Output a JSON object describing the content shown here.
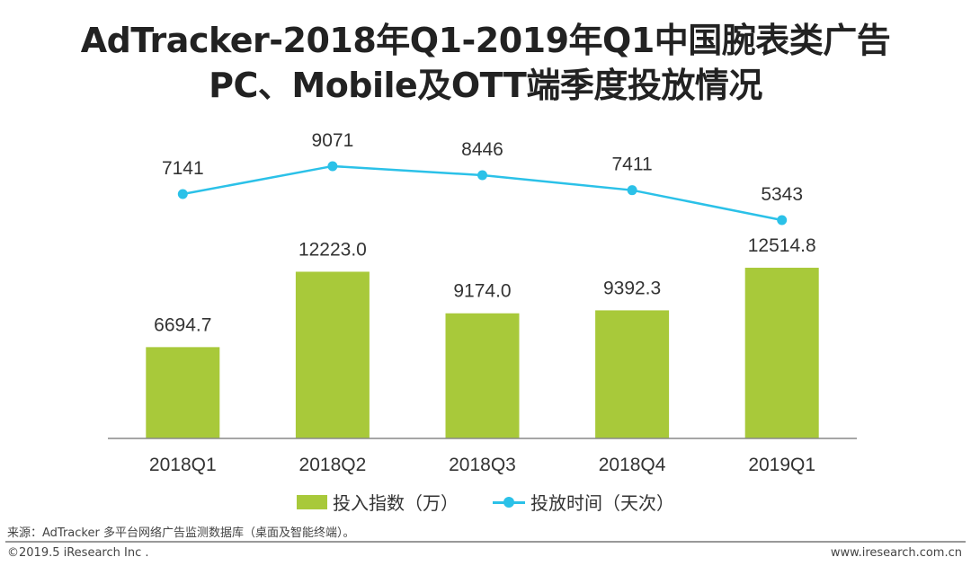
{
  "chart_data": {
    "type": "bar+line",
    "title": "AdTracker-2018年Q1-2019年Q1中国腕表类广告",
    "subtitle": "PC、Mobile及OTT端季度投放情况",
    "categories": [
      "2018Q1",
      "2018Q2",
      "2018Q3",
      "2018Q4",
      "2019Q1"
    ],
    "series": [
      {
        "name": "投入指数（万）",
        "type": "bar",
        "values": [
          6694.7,
          12223.0,
          9174.0,
          9392.3,
          12514.8
        ],
        "labels": [
          "6694.7",
          "12223.0",
          "9174.0",
          "9392.3",
          "12514.8"
        ],
        "color": "#a8c93a"
      },
      {
        "name": "投放时间（天次）",
        "type": "line",
        "values": [
          7141,
          9071,
          8446,
          7411,
          5343
        ],
        "labels": [
          "7141",
          "9071",
          "8446",
          "7411",
          "5343"
        ],
        "color": "#2bc1e8"
      }
    ],
    "grid": false,
    "legend": "bottom"
  },
  "footer": {
    "source": "来源：AdTracker 多平台网络广告监测数据库（桌面及智能终端）。",
    "copyright": "©2019.5 iResearch Inc .",
    "website": "www.iresearch.com.cn"
  }
}
